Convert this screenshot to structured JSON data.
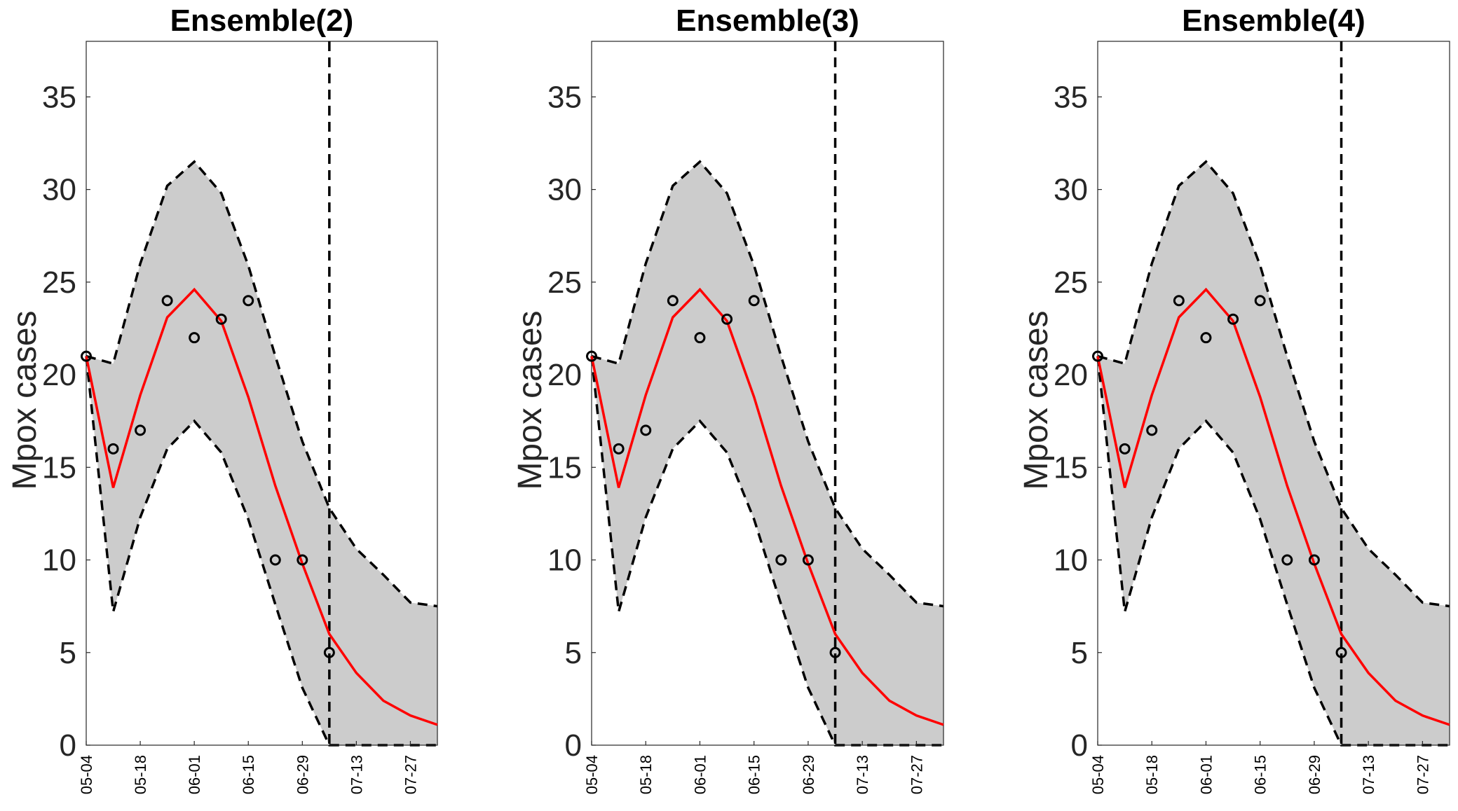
{
  "chart_data": [
    {
      "type": "line",
      "title": "Ensemble(2)",
      "ylabel": "Mpox cases",
      "xlabel": "",
      "x_ticks": [
        "05-04",
        "05-18",
        "06-01",
        "06-15",
        "06-29",
        "07-13",
        "07-27"
      ],
      "x": [
        "05-04",
        "05-11",
        "05-18",
        "05-25",
        "06-01",
        "06-08",
        "06-15",
        "06-22",
        "06-29",
        "07-06",
        "07-13",
        "07-20",
        "07-27",
        "08-03"
      ],
      "ylim": [
        0,
        38
      ],
      "yticks": [
        0,
        5,
        10,
        15,
        20,
        25,
        30,
        35
      ],
      "forecast_start": "07-06",
      "series": [
        {
          "role": "fit",
          "color": "#ff0000",
          "values": [
            21.0,
            13.9,
            18.9,
            23.1,
            24.6,
            22.9,
            18.8,
            14.0,
            9.8,
            6.0,
            3.9,
            2.4,
            1.6,
            1.1
          ]
        },
        {
          "role": "upper_bound",
          "color": "#000000",
          "values": [
            21.0,
            20.6,
            26.0,
            30.2,
            31.5,
            29.8,
            25.9,
            21.0,
            16.4,
            12.8,
            10.6,
            9.2,
            7.7,
            7.5
          ]
        },
        {
          "role": "lower_bound",
          "color": "#000000",
          "values": [
            21.0,
            7.2,
            12.3,
            16.0,
            17.5,
            15.8,
            12.2,
            7.6,
            3.1,
            0,
            0,
            0,
            0,
            0
          ]
        },
        {
          "role": "observed",
          "color": "#000000",
          "x": [
            "05-04",
            "05-11",
            "05-18",
            "05-25",
            "06-01",
            "06-08",
            "06-15",
            "06-22",
            "06-29",
            "07-06"
          ],
          "values": [
            21,
            16,
            17,
            24,
            22,
            23,
            24,
            10,
            10,
            5
          ]
        }
      ]
    },
    {
      "type": "line",
      "title": "Ensemble(3)",
      "ylabel": "Mpox cases",
      "xlabel": "",
      "x_ticks": [
        "05-04",
        "05-18",
        "06-01",
        "06-15",
        "06-29",
        "07-13",
        "07-27"
      ],
      "x": [
        "05-04",
        "05-11",
        "05-18",
        "05-25",
        "06-01",
        "06-08",
        "06-15",
        "06-22",
        "06-29",
        "07-06",
        "07-13",
        "07-20",
        "07-27",
        "08-03"
      ],
      "ylim": [
        0,
        38
      ],
      "yticks": [
        0,
        5,
        10,
        15,
        20,
        25,
        30,
        35
      ],
      "forecast_start": "07-06",
      "series": [
        {
          "role": "fit",
          "color": "#ff0000",
          "values": [
            21.0,
            13.9,
            18.9,
            23.1,
            24.6,
            22.9,
            18.8,
            14.0,
            9.8,
            6.0,
            3.9,
            2.4,
            1.6,
            1.1
          ]
        },
        {
          "role": "upper_bound",
          "color": "#000000",
          "values": [
            21.0,
            20.6,
            26.0,
            30.2,
            31.5,
            29.8,
            25.9,
            21.0,
            16.4,
            12.8,
            10.6,
            9.2,
            7.7,
            7.5
          ]
        },
        {
          "role": "lower_bound",
          "color": "#000000",
          "values": [
            21.0,
            7.2,
            12.3,
            16.0,
            17.5,
            15.8,
            12.2,
            7.6,
            3.1,
            0,
            0,
            0,
            0,
            0
          ]
        },
        {
          "role": "observed",
          "color": "#000000",
          "x": [
            "05-04",
            "05-11",
            "05-18",
            "05-25",
            "06-01",
            "06-08",
            "06-15",
            "06-22",
            "06-29",
            "07-06"
          ],
          "values": [
            21,
            16,
            17,
            24,
            22,
            23,
            24,
            10,
            10,
            5
          ]
        }
      ]
    },
    {
      "type": "line",
      "title": "Ensemble(4)",
      "ylabel": "Mpox cases",
      "xlabel": "",
      "x_ticks": [
        "05-04",
        "05-18",
        "06-01",
        "06-15",
        "06-29",
        "07-13",
        "07-27"
      ],
      "x": [
        "05-04",
        "05-11",
        "05-18",
        "05-25",
        "06-01",
        "06-08",
        "06-15",
        "06-22",
        "06-29",
        "07-06",
        "07-13",
        "07-20",
        "07-27",
        "08-03"
      ],
      "ylim": [
        0,
        38
      ],
      "yticks": [
        0,
        5,
        10,
        15,
        20,
        25,
        30,
        35
      ],
      "forecast_start": "07-06",
      "series": [
        {
          "role": "fit",
          "color": "#ff0000",
          "values": [
            21.0,
            13.9,
            18.9,
            23.1,
            24.6,
            22.9,
            18.8,
            14.0,
            9.8,
            6.0,
            3.9,
            2.4,
            1.6,
            1.1
          ]
        },
        {
          "role": "upper_bound",
          "color": "#000000",
          "values": [
            21.0,
            20.6,
            26.0,
            30.2,
            31.5,
            29.8,
            25.9,
            21.0,
            16.4,
            12.8,
            10.6,
            9.2,
            7.7,
            7.5
          ]
        },
        {
          "role": "lower_bound",
          "color": "#000000",
          "values": [
            21.0,
            7.2,
            12.3,
            16.0,
            17.5,
            15.8,
            12.2,
            7.6,
            3.1,
            0,
            0,
            0,
            0,
            0
          ]
        },
        {
          "role": "observed",
          "color": "#000000",
          "x": [
            "05-04",
            "05-11",
            "05-18",
            "05-25",
            "06-01",
            "06-08",
            "06-15",
            "06-22",
            "06-29",
            "07-06"
          ],
          "values": [
            21,
            16,
            17,
            24,
            22,
            23,
            24,
            10,
            10,
            5
          ]
        }
      ]
    }
  ],
  "colors": {
    "band_fill": "#cccccc",
    "fit_line": "#ff0000",
    "bounds": "#000000",
    "observed": "#000000"
  }
}
